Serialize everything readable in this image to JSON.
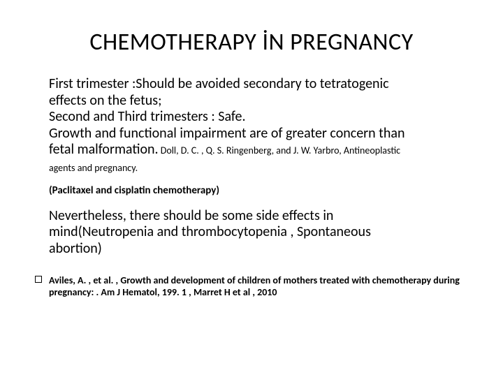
{
  "title": "CHEMOTHERAPY İN PREGNANCY",
  "para1_lines": {
    "l1": "First trimester :Should be avoided secondary to tetratogenic",
    "l2": "effects on the fetus;",
    "l3": "Second and Third trimesters : Safe.",
    "l4": "Growth and functional impairment are of greater concern than",
    "l5a": "fetal malformation.",
    "l5b": " Doll, D. C. , Q. S. Ringenberg, and J. W. Yarbro, Antineoplastic"
  },
  "citation_cont": "agents and pregnancy.",
  "sub_note": "(Paclitaxel and cisplatin chemotherapy)",
  "para2_lines": {
    "l1": "Nevertheless, there should be some side effects in",
    "l2": "mind(Neutropenia and thrombocytopenia , Spontaneous",
    "l3": "abortion)"
  },
  "reference": "Aviles, A. , et al. , Growth and development of children of mothers treated with chemotherapy during pregnancy: . Am J Hematol, 199. 1 , Marret H et al , 2010",
  "colors": {
    "background": "#ffffff",
    "text": "#000000"
  },
  "typography": {
    "title_fontsize": 34,
    "body_fontsize": 20,
    "citation_fontsize": 14,
    "subnote_fontsize": 15,
    "ref_fontsize": 14
  }
}
